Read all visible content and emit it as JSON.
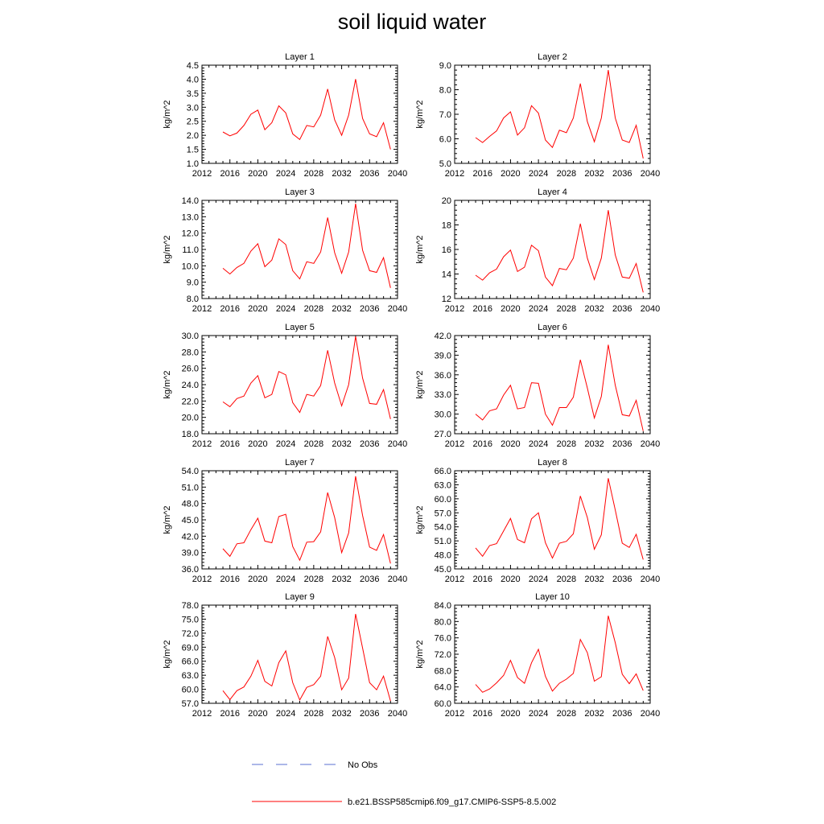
{
  "title": "soil liquid water",
  "legend": {
    "items": [
      {
        "label": "No Obs",
        "color": "#5a6fd1",
        "style": "dashed"
      },
      {
        "label": "b.e21.BSSP585cmip6.f09_g17.CMIP6-SSP5-8.5.002",
        "color": "#ff0000",
        "style": "solid"
      }
    ]
  },
  "chart_data": [
    {
      "type": "line",
      "title": "Layer 1",
      "ylabel": "kg/m^2",
      "xlim": [
        2012,
        2040
      ],
      "xticks": [
        "2012",
        "2016",
        "2020",
        "2024",
        "2028",
        "2032",
        "2036",
        "2040"
      ],
      "ylim": [
        1.0,
        4.5
      ],
      "yticks": [
        "1.0",
        "1.5",
        "2.0",
        "2.5",
        "3.0",
        "3.5",
        "4.0",
        "4.5"
      ],
      "series": [
        {
          "color": "#ff0000",
          "x": [
            2015,
            2016,
            2017,
            2018,
            2019,
            2020,
            2021,
            2022,
            2023,
            2024,
            2025,
            2026,
            2027,
            2028,
            2029,
            2030,
            2031,
            2032,
            2033,
            2034,
            2035,
            2036,
            2037,
            2038,
            2039
          ],
          "y": [
            2.12,
            1.98,
            2.08,
            2.35,
            2.75,
            2.9,
            2.2,
            2.45,
            3.05,
            2.8,
            2.05,
            1.85,
            2.35,
            2.3,
            2.72,
            3.65,
            2.55,
            2.0,
            2.72,
            4.0,
            2.6,
            2.05,
            1.95,
            2.45,
            1.5
          ]
        }
      ]
    },
    {
      "type": "line",
      "title": "Layer 2",
      "ylabel": "kg/m^2",
      "xlim": [
        2012,
        2040
      ],
      "xticks": [
        "2012",
        "2016",
        "2020",
        "2024",
        "2028",
        "2032",
        "2036",
        "2040"
      ],
      "ylim": [
        5.0,
        9.0
      ],
      "yticks": [
        "5.0",
        "6.0",
        "7.0",
        "8.0",
        "9.0"
      ],
      "series": [
        {
          "color": "#ff0000",
          "x": [
            2015,
            2016,
            2017,
            2018,
            2019,
            2020,
            2021,
            2022,
            2023,
            2024,
            2025,
            2026,
            2027,
            2028,
            2029,
            2030,
            2031,
            2032,
            2033,
            2034,
            2035,
            2036,
            2037,
            2038,
            2039
          ],
          "y": [
            6.05,
            5.85,
            6.1,
            6.32,
            6.85,
            7.1,
            6.15,
            6.45,
            7.35,
            7.05,
            5.95,
            5.65,
            6.35,
            6.25,
            6.85,
            8.25,
            6.7,
            5.88,
            6.85,
            8.8,
            6.85,
            5.95,
            5.85,
            6.55,
            5.2
          ]
        }
      ]
    },
    {
      "type": "line",
      "title": "Layer 3",
      "ylabel": "kg/m^2",
      "xlim": [
        2012,
        2040
      ],
      "xticks": [
        "2012",
        "2016",
        "2020",
        "2024",
        "2028",
        "2032",
        "2036",
        "2040"
      ],
      "ylim": [
        8.0,
        14.0
      ],
      "yticks": [
        "8.0",
        "9.0",
        "10.0",
        "11.0",
        "12.0",
        "13.0",
        "14.0"
      ],
      "series": [
        {
          "color": "#ff0000",
          "x": [
            2015,
            2016,
            2017,
            2018,
            2019,
            2020,
            2021,
            2022,
            2023,
            2024,
            2025,
            2026,
            2027,
            2028,
            2029,
            2030,
            2031,
            2032,
            2033,
            2034,
            2035,
            2036,
            2037,
            2038,
            2039
          ],
          "y": [
            9.85,
            9.5,
            9.9,
            10.15,
            10.9,
            11.35,
            9.95,
            10.35,
            11.65,
            11.3,
            9.7,
            9.2,
            10.25,
            10.15,
            10.85,
            12.95,
            10.8,
            9.55,
            10.85,
            13.8,
            10.95,
            9.7,
            9.6,
            10.5,
            8.65
          ]
        }
      ]
    },
    {
      "type": "line",
      "title": "Layer 4",
      "ylabel": "kg/m^2",
      "xlim": [
        2012,
        2040
      ],
      "xticks": [
        "2012",
        "2016",
        "2020",
        "2024",
        "2028",
        "2032",
        "2036",
        "2040"
      ],
      "ylim": [
        12,
        20
      ],
      "yticks": [
        "12",
        "14",
        "16",
        "18",
        "20"
      ],
      "series": [
        {
          "color": "#ff0000",
          "x": [
            2015,
            2016,
            2017,
            2018,
            2019,
            2020,
            2021,
            2022,
            2023,
            2024,
            2025,
            2026,
            2027,
            2028,
            2029,
            2030,
            2031,
            2032,
            2033,
            2034,
            2035,
            2036,
            2037,
            2038,
            2039
          ],
          "y": [
            13.9,
            13.5,
            14.1,
            14.4,
            15.4,
            15.95,
            14.2,
            14.55,
            16.35,
            15.9,
            13.75,
            13.05,
            14.45,
            14.35,
            15.3,
            18.1,
            15.3,
            13.55,
            15.3,
            19.2,
            15.55,
            13.75,
            13.65,
            14.85,
            12.5
          ]
        }
      ]
    },
    {
      "type": "line",
      "title": "Layer 5",
      "ylabel": "kg/m^2",
      "xlim": [
        2012,
        2040
      ],
      "xticks": [
        "2012",
        "2016",
        "2020",
        "2024",
        "2028",
        "2032",
        "2036",
        "2040"
      ],
      "ylim": [
        18.0,
        30.0
      ],
      "yticks": [
        "18.0",
        "20.0",
        "22.0",
        "24.0",
        "26.0",
        "28.0",
        "30.0"
      ],
      "series": [
        {
          "color": "#ff0000",
          "x": [
            2015,
            2016,
            2017,
            2018,
            2019,
            2020,
            2021,
            2022,
            2023,
            2024,
            2025,
            2026,
            2027,
            2028,
            2029,
            2030,
            2031,
            2032,
            2033,
            2034,
            2035,
            2036,
            2037,
            2038,
            2039
          ],
          "y": [
            21.9,
            21.3,
            22.3,
            22.6,
            24.2,
            25.1,
            22.4,
            22.8,
            25.6,
            25.2,
            21.8,
            20.6,
            22.8,
            22.6,
            23.9,
            28.2,
            24.2,
            21.4,
            24.0,
            29.9,
            24.8,
            21.7,
            21.6,
            23.4,
            19.8
          ]
        }
      ]
    },
    {
      "type": "line",
      "title": "Layer 6",
      "ylabel": "kg/m^2",
      "xlim": [
        2012,
        2040
      ],
      "xticks": [
        "2012",
        "2016",
        "2020",
        "2024",
        "2028",
        "2032",
        "2036",
        "2040"
      ],
      "ylim": [
        27.0,
        42.0
      ],
      "yticks": [
        "27.0",
        "30.0",
        "33.0",
        "36.0",
        "39.0",
        "42.0"
      ],
      "series": [
        {
          "color": "#ff0000",
          "x": [
            2015,
            2016,
            2017,
            2018,
            2019,
            2020,
            2021,
            2022,
            2023,
            2024,
            2025,
            2026,
            2027,
            2028,
            2029,
            2030,
            2031,
            2032,
            2033,
            2034,
            2035,
            2036,
            2037,
            2038,
            2039
          ],
          "y": [
            30.0,
            29.1,
            30.5,
            30.8,
            32.9,
            34.4,
            30.8,
            31.0,
            34.8,
            34.7,
            30.0,
            28.3,
            31.0,
            31.0,
            32.6,
            38.3,
            34.0,
            29.4,
            32.7,
            40.6,
            34.4,
            29.9,
            29.7,
            32.1,
            27.4
          ]
        }
      ]
    },
    {
      "type": "line",
      "title": "Layer 7",
      "ylabel": "kg/m^2",
      "xlim": [
        2012,
        2040
      ],
      "xticks": [
        "2012",
        "2016",
        "2020",
        "2024",
        "2028",
        "2032",
        "2036",
        "2040"
      ],
      "ylim": [
        36.0,
        54.0
      ],
      "yticks": [
        "36.0",
        "39.0",
        "42.0",
        "45.0",
        "48.0",
        "51.0",
        "54.0"
      ],
      "series": [
        {
          "color": "#ff0000",
          "x": [
            2015,
            2016,
            2017,
            2018,
            2019,
            2020,
            2021,
            2022,
            2023,
            2024,
            2025,
            2026,
            2027,
            2028,
            2029,
            2030,
            2031,
            2032,
            2033,
            2034,
            2035,
            2036,
            2037,
            2038,
            2039
          ],
          "y": [
            39.7,
            38.3,
            40.6,
            40.8,
            43.2,
            45.3,
            41.1,
            40.8,
            45.6,
            46.0,
            40.1,
            37.6,
            40.9,
            41.0,
            42.8,
            50.0,
            45.4,
            39.0,
            42.6,
            53.0,
            45.8,
            40.0,
            39.4,
            42.3,
            37.0
          ]
        }
      ]
    },
    {
      "type": "line",
      "title": "Layer 8",
      "ylabel": "kg/m^2",
      "xlim": [
        2012,
        2040
      ],
      "xticks": [
        "2012",
        "2016",
        "2020",
        "2024",
        "2028",
        "2032",
        "2036",
        "2040"
      ],
      "ylim": [
        45.0,
        66.0
      ],
      "yticks": [
        "45.0",
        "48.0",
        "51.0",
        "54.0",
        "57.0",
        "60.0",
        "63.0",
        "66.0"
      ],
      "series": [
        {
          "color": "#ff0000",
          "x": [
            2015,
            2016,
            2017,
            2018,
            2019,
            2020,
            2021,
            2022,
            2023,
            2024,
            2025,
            2026,
            2027,
            2028,
            2029,
            2030,
            2031,
            2032,
            2033,
            2034,
            2035,
            2036,
            2037,
            2038,
            2039
          ],
          "y": [
            49.5,
            47.7,
            50.0,
            50.4,
            53.1,
            55.8,
            51.3,
            50.6,
            55.7,
            57.0,
            50.6,
            47.3,
            50.5,
            50.9,
            52.5,
            60.6,
            56.0,
            49.2,
            52.3,
            64.4,
            57.6,
            50.5,
            49.6,
            52.4,
            47.0
          ]
        }
      ]
    },
    {
      "type": "line",
      "title": "Layer 9",
      "ylabel": "kg/m^2",
      "xlim": [
        2012,
        2040
      ],
      "xticks": [
        "2012",
        "2016",
        "2020",
        "2024",
        "2028",
        "2032",
        "2036",
        "2040"
      ],
      "ylim": [
        57.0,
        78.0
      ],
      "yticks": [
        "57.0",
        "60.0",
        "63.0",
        "66.0",
        "69.0",
        "72.0",
        "75.0",
        "78.0"
      ],
      "series": [
        {
          "color": "#ff0000",
          "x": [
            2015,
            2016,
            2017,
            2018,
            2019,
            2020,
            2021,
            2022,
            2023,
            2024,
            2025,
            2026,
            2027,
            2028,
            2029,
            2030,
            2031,
            2032,
            2033,
            2034,
            2035,
            2036,
            2037,
            2038,
            2039
          ],
          "y": [
            59.7,
            57.8,
            59.7,
            60.5,
            62.8,
            66.2,
            61.7,
            60.7,
            65.7,
            68.2,
            61.4,
            57.7,
            60.4,
            61.0,
            62.8,
            71.3,
            66.8,
            59.9,
            62.4,
            76.1,
            68.8,
            61.4,
            59.9,
            62.8,
            57.5
          ]
        }
      ]
    },
    {
      "type": "line",
      "title": "Layer 10",
      "ylabel": "kg/m^2",
      "xlim": [
        2012,
        2040
      ],
      "xticks": [
        "2012",
        "2016",
        "2020",
        "2024",
        "2028",
        "2032",
        "2036",
        "2040"
      ],
      "ylim": [
        60.0,
        84.0
      ],
      "yticks": [
        "60.0",
        "64.0",
        "68.0",
        "72.0",
        "76.0",
        "80.0",
        "84.0"
      ],
      "series": [
        {
          "color": "#ff0000",
          "x": [
            2015,
            2016,
            2017,
            2018,
            2019,
            2020,
            2021,
            2022,
            2023,
            2024,
            2025,
            2026,
            2027,
            2028,
            2029,
            2030,
            2031,
            2032,
            2033,
            2034,
            2035,
            2036,
            2037,
            2038,
            2039
          ],
          "y": [
            64.6,
            62.7,
            63.5,
            65.0,
            66.8,
            70.5,
            66.3,
            64.9,
            69.9,
            73.2,
            66.6,
            63.0,
            64.9,
            65.9,
            67.3,
            75.6,
            72.4,
            65.4,
            66.5,
            81.4,
            74.8,
            67.1,
            64.8,
            67.2,
            63.1
          ]
        }
      ]
    }
  ]
}
